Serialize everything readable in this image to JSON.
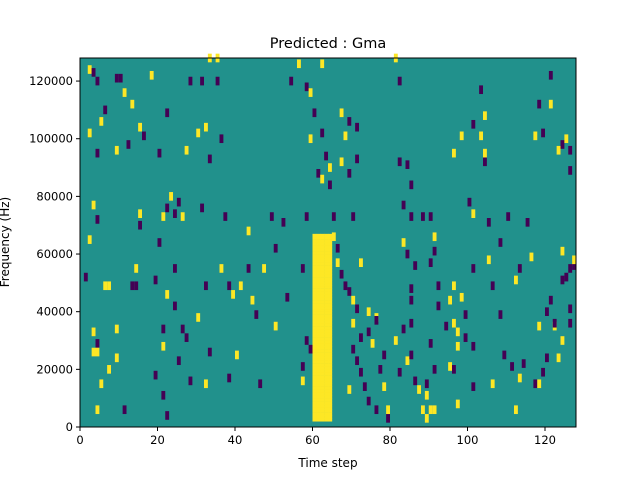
{
  "chart_data": {
    "type": "heatmap",
    "title": "Predicted : Gma",
    "xlabel": "Time step",
    "ylabel": "Frequency (Hz)",
    "xlim": [
      0,
      128
    ],
    "ylim": [
      0,
      128000
    ],
    "n_time_steps": 128,
    "n_freq_bins": 128,
    "x_ticks": [
      0,
      20,
      40,
      60,
      80,
      100,
      120
    ],
    "x_tick_labels": [
      "0",
      "20",
      "40",
      "60",
      "80",
      "100",
      "120"
    ],
    "y_ticks": [
      0,
      20000,
      40000,
      60000,
      80000,
      100000,
      120000
    ],
    "y_tick_labels": [
      "0",
      "20000",
      "40000",
      "60000",
      "80000",
      "100000",
      "120000"
    ],
    "colormap": "viridis",
    "background_value": 0,
    "value_colors": {
      "-1": "#440154",
      "0": "#21918c",
      "1": "#fde725"
    },
    "dense_band": {
      "t": [
        60,
        64
      ],
      "f_start": 2000,
      "f_end": 66000,
      "value": 1
    },
    "cells": [
      [
        2,
        124000,
        1
      ],
      [
        3,
        123000,
        -1
      ],
      [
        4,
        120000,
        -1
      ],
      [
        5,
        106000,
        1
      ],
      [
        6,
        110000,
        -1
      ],
      [
        2,
        102000,
        1
      ],
      [
        4,
        95000,
        -1
      ],
      [
        3,
        77000,
        1
      ],
      [
        4,
        72000,
        -1
      ],
      [
        2,
        65000,
        1
      ],
      [
        1,
        52000,
        -1
      ],
      [
        6,
        49000,
        1
      ],
      [
        7,
        49000,
        1
      ],
      [
        3,
        33000,
        1
      ],
      [
        4,
        29000,
        -1
      ],
      [
        3,
        26000,
        1
      ],
      [
        4,
        26000,
        1
      ],
      [
        5,
        15000,
        1
      ],
      [
        4,
        6000,
        1
      ],
      [
        9,
        121000,
        -1
      ],
      [
        10,
        121000,
        -1
      ],
      [
        11,
        116000,
        1
      ],
      [
        12,
        98000,
        -1
      ],
      [
        9,
        96000,
        1
      ],
      [
        9,
        34000,
        1
      ],
      [
        7,
        20000,
        1
      ],
      [
        9,
        24000,
        1
      ],
      [
        11,
        6000,
        -1
      ],
      [
        13,
        49000,
        -1
      ],
      [
        14,
        49000,
        -1
      ],
      [
        13,
        112000,
        1
      ],
      [
        15,
        104000,
        1
      ],
      [
        15,
        74000,
        1
      ],
      [
        15,
        70000,
        -1
      ],
      [
        14,
        55000,
        1
      ],
      [
        16,
        101000,
        -1
      ],
      [
        18,
        122000,
        1
      ],
      [
        19,
        51000,
        -1
      ],
      [
        20,
        95000,
        -1
      ],
      [
        21,
        73000,
        1
      ],
      [
        20,
        64000,
        -1
      ],
      [
        22,
        109000,
        -1
      ],
      [
        22,
        76000,
        -1
      ],
      [
        22,
        46000,
        1
      ],
      [
        21,
        34000,
        -1
      ],
      [
        21,
        28000,
        1
      ],
      [
        19,
        18000,
        -1
      ],
      [
        21,
        11000,
        -1
      ],
      [
        22,
        4000,
        -1
      ],
      [
        23,
        80000,
        1
      ],
      [
        24,
        74000,
        -1
      ],
      [
        25,
        78000,
        -1
      ],
      [
        26,
        73000,
        1
      ],
      [
        24,
        55000,
        -1
      ],
      [
        24,
        42000,
        -1
      ],
      [
        26,
        34000,
        -1
      ],
      [
        25,
        23000,
        -1
      ],
      [
        27,
        31000,
        -1
      ],
      [
        28,
        16000,
        -1
      ],
      [
        27,
        96000,
        1
      ],
      [
        28,
        120000,
        -1
      ],
      [
        30,
        102000,
        1
      ],
      [
        31,
        120000,
        -1
      ],
      [
        32,
        104000,
        1
      ],
      [
        33,
        93000,
        -1
      ],
      [
        31,
        76000,
        -1
      ],
      [
        32,
        49000,
        -1
      ],
      [
        30,
        38000,
        1
      ],
      [
        33,
        26000,
        -1
      ],
      [
        32,
        15000,
        1
      ],
      [
        33,
        128000,
        1
      ],
      [
        35,
        128000,
        1
      ],
      [
        35,
        120000,
        -1
      ],
      [
        36,
        100000,
        -1
      ],
      [
        37,
        73000,
        -1
      ],
      [
        36,
        55000,
        1
      ],
      [
        38,
        49000,
        -1
      ],
      [
        39,
        46000,
        1
      ],
      [
        38,
        17000,
        -1
      ],
      [
        40,
        25000,
        1
      ],
      [
        41,
        49000,
        1
      ],
      [
        43,
        55000,
        -1
      ],
      [
        43,
        68000,
        1
      ],
      [
        44,
        44000,
        1
      ],
      [
        45,
        39000,
        -1
      ],
      [
        46,
        15000,
        -1
      ],
      [
        47,
        55000,
        1
      ],
      [
        49,
        73000,
        -1
      ],
      [
        50,
        62000,
        -1
      ],
      [
        50,
        35000,
        1
      ],
      [
        52,
        71000,
        -1
      ],
      [
        53,
        45000,
        -1
      ],
      [
        54,
        120000,
        -1
      ],
      [
        56,
        126000,
        1
      ],
      [
        58,
        118000,
        -1
      ],
      [
        59,
        116000,
        1
      ],
      [
        59,
        100000,
        1
      ],
      [
        58,
        73000,
        -1
      ],
      [
        57,
        55000,
        -1
      ],
      [
        58,
        30000,
        -1
      ],
      [
        57,
        21000,
        -1
      ],
      [
        59,
        27000,
        -1
      ],
      [
        57,
        16000,
        1
      ],
      [
        62,
        126000,
        1
      ],
      [
        60,
        109000,
        -1
      ],
      [
        62,
        102000,
        -1
      ],
      [
        63,
        94000,
        -1
      ],
      [
        61,
        88000,
        -1
      ],
      [
        62,
        86000,
        1
      ],
      [
        64,
        90000,
        1
      ],
      [
        64,
        84000,
        -1
      ],
      [
        65,
        73000,
        -1
      ],
      [
        65,
        66000,
        1
      ],
      [
        66,
        62000,
        -1
      ],
      [
        66,
        57000,
        1
      ],
      [
        67,
        53000,
        -1
      ],
      [
        68,
        49000,
        -1
      ],
      [
        69,
        47000,
        -1
      ],
      [
        70,
        44000,
        1
      ],
      [
        71,
        41000,
        -1
      ],
      [
        70,
        36000,
        1
      ],
      [
        72,
        31000,
        -1
      ],
      [
        70,
        27000,
        -1
      ],
      [
        71,
        23000,
        -1
      ],
      [
        72,
        19000,
        -1
      ],
      [
        73,
        14000,
        -1
      ],
      [
        69,
        13000,
        1
      ],
      [
        74,
        9000,
        -1
      ],
      [
        76,
        6000,
        -1
      ],
      [
        67,
        109000,
        1
      ],
      [
        69,
        106000,
        -1
      ],
      [
        71,
        104000,
        -1
      ],
      [
        68,
        101000,
        1
      ],
      [
        67,
        92000,
        1
      ],
      [
        69,
        88000,
        -1
      ],
      [
        71,
        93000,
        -1
      ],
      [
        70,
        73000,
        -1
      ],
      [
        72,
        57000,
        1
      ],
      [
        74,
        40000,
        1
      ],
      [
        76,
        38000,
        1
      ],
      [
        74,
        33000,
        -1
      ],
      [
        76,
        37000,
        -1
      ],
      [
        75,
        29000,
        1
      ],
      [
        78,
        25000,
        -1
      ],
      [
        77,
        20000,
        -1
      ],
      [
        78,
        14000,
        1
      ],
      [
        79,
        3000,
        -1
      ],
      [
        79,
        6000,
        1
      ],
      [
        81,
        128000,
        1
      ],
      [
        82,
        120000,
        -1
      ],
      [
        84,
        91000,
        -1
      ],
      [
        85,
        84000,
        -1
      ],
      [
        82,
        92000,
        -1
      ],
      [
        85,
        73000,
        -1
      ],
      [
        83,
        77000,
        -1
      ],
      [
        83,
        64000,
        1
      ],
      [
        84,
        60000,
        -1
      ],
      [
        86,
        56000,
        -1
      ],
      [
        85,
        48000,
        -1
      ],
      [
        85,
        44000,
        -1
      ],
      [
        83,
        34000,
        -1
      ],
      [
        81,
        30000,
        1
      ],
      [
        82,
        19000,
        -1
      ],
      [
        84,
        23000,
        1
      ],
      [
        85,
        25000,
        -1
      ],
      [
        85,
        36000,
        -1
      ],
      [
        86,
        16000,
        -1
      ],
      [
        87,
        13000,
        1
      ],
      [
        88,
        6000,
        1
      ],
      [
        89,
        11000,
        1
      ],
      [
        90,
        6000,
        1
      ],
      [
        91,
        6000,
        1
      ],
      [
        88,
        73000,
        -1
      ],
      [
        90,
        73000,
        -1
      ],
      [
        91,
        61000,
        -1
      ],
      [
        91,
        66000,
        1
      ],
      [
        90,
        57000,
        -1
      ],
      [
        92,
        49000,
        -1
      ],
      [
        92,
        42000,
        -1
      ],
      [
        90,
        29000,
        -1
      ],
      [
        91,
        20000,
        -1
      ],
      [
        89,
        15000,
        -1
      ],
      [
        89,
        3000,
        1
      ],
      [
        94,
        35000,
        -1
      ],
      [
        95,
        44000,
        1
      ],
      [
        96,
        49000,
        1
      ],
      [
        98,
        45000,
        1
      ],
      [
        96,
        36000,
        1
      ],
      [
        97,
        33000,
        1
      ],
      [
        97,
        28000,
        1
      ],
      [
        95,
        21000,
        1
      ],
      [
        96,
        20000,
        -1
      ],
      [
        97,
        8000,
        1
      ],
      [
        99,
        31000,
        -1
      ],
      [
        99,
        39000,
        -1
      ],
      [
        101,
        55000,
        -1
      ],
      [
        101,
        28000,
        -1
      ],
      [
        101,
        14000,
        -1
      ],
      [
        96,
        95000,
        1
      ],
      [
        98,
        101000,
        1
      ],
      [
        100,
        78000,
        -1
      ],
      [
        101,
        74000,
        1
      ],
      [
        101,
        105000,
        -1
      ],
      [
        103,
        117000,
        -1
      ],
      [
        104,
        108000,
        1
      ],
      [
        103,
        101000,
        1
      ],
      [
        104,
        92000,
        -1
      ],
      [
        104,
        95000,
        1
      ],
      [
        105,
        71000,
        -1
      ],
      [
        105,
        58000,
        1
      ],
      [
        106,
        49000,
        -1
      ],
      [
        108,
        64000,
        -1
      ],
      [
        108,
        39000,
        -1
      ],
      [
        106,
        15000,
        1
      ],
      [
        109,
        25000,
        -1
      ],
      [
        112,
        6000,
        1
      ],
      [
        113,
        55000,
        -1
      ],
      [
        115,
        71000,
        -1
      ],
      [
        116,
        59000,
        1
      ],
      [
        117,
        15000,
        -1
      ],
      [
        118,
        15000,
        1
      ],
      [
        119,
        19000,
        -1
      ],
      [
        118,
        35000,
        1
      ],
      [
        120,
        24000,
        -1
      ],
      [
        120,
        40000,
        -1
      ],
      [
        121,
        44000,
        -1
      ],
      [
        122,
        35000,
        1
      ],
      [
        123,
        24000,
        1
      ],
      [
        122,
        36000,
        -1
      ],
      [
        124,
        51000,
        -1
      ],
      [
        124,
        30000,
        1
      ],
      [
        125,
        52000,
        -1
      ],
      [
        126,
        55000,
        -1
      ],
      [
        127,
        56000,
        -1
      ],
      [
        117,
        101000,
        1
      ],
      [
        118,
        112000,
        -1
      ],
      [
        119,
        102000,
        -1
      ],
      [
        121,
        112000,
        1
      ],
      [
        121,
        122000,
        -1
      ],
      [
        123,
        96000,
        1
      ],
      [
        124,
        98000,
        -1
      ],
      [
        126,
        96000,
        -1
      ],
      [
        125,
        100000,
        1
      ],
      [
        126,
        89000,
        -1
      ],
      [
        124,
        61000,
        1
      ],
      [
        127,
        58000,
        1
      ],
      [
        126,
        36000,
        -1
      ],
      [
        126,
        41000,
        -1
      ],
      [
        110,
        73000,
        -1
      ],
      [
        112,
        51000,
        1
      ],
      [
        111,
        21000,
        -1
      ],
      [
        113,
        17000,
        1
      ],
      [
        114,
        22000,
        -1
      ]
    ]
  }
}
